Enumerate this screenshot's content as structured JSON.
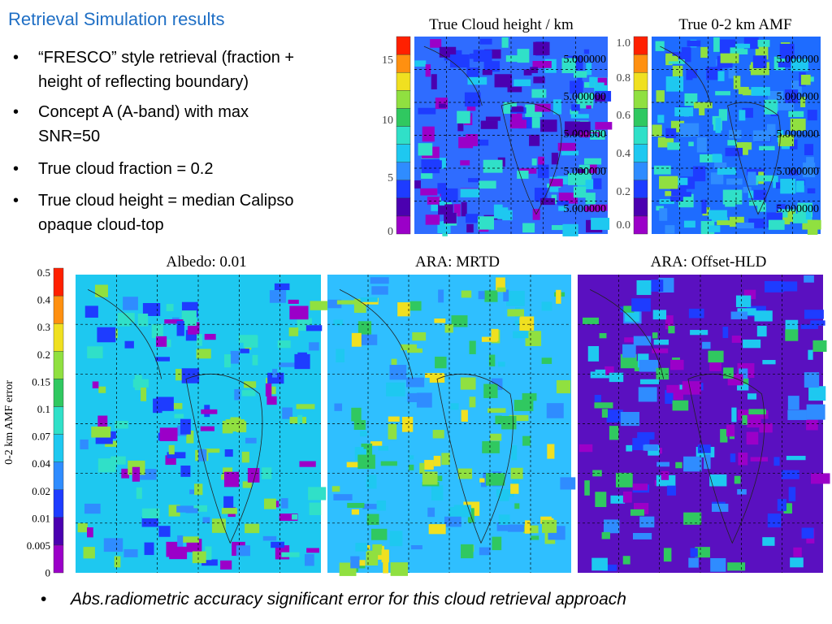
{
  "title": "Retrieval Simulation results",
  "bullets": [
    [
      "“FRESCO” style retrieval (fraction +",
      "height of reflecting boundary)"
    ],
    [
      "Concept A (A-band) with max",
      "SNR=50"
    ],
    [
      "True cloud fraction = 0.2"
    ],
    [
      "True cloud height = median Calipso",
      "opaque cloud-top"
    ]
  ],
  "top_panels": [
    {
      "title": "True Cloud height / km",
      "colorbar_ticks": [
        "15",
        "10",
        "5",
        "0"
      ],
      "annotations": [
        "5.000000",
        "5.000000",
        "5.000000",
        "5.000000",
        "5.000000"
      ]
    },
    {
      "title": "True 0-2 km AMF",
      "colorbar_ticks": [
        "1.0",
        "0.8",
        "0.6",
        "0.4",
        "0.2",
        "0.0"
      ],
      "annotations": [
        "5.000000",
        "5.000000",
        "5.000000",
        "5.000000",
        "5.000000"
      ]
    }
  ],
  "bottom": {
    "colorbar_label": "0-2 km AMF error",
    "colorbar_ticks": [
      "0.5",
      "0.4",
      "0.3",
      "0.2",
      "0.15",
      "0.1",
      "0.07",
      "0.04",
      "0.02",
      "0.01",
      "0.005",
      "0"
    ],
    "panels": [
      "Albedo: 0.01",
      "ARA: MRTD",
      "ARA: Offset-HLD"
    ]
  },
  "footnote": "Abs.radiometric accuracy significant error for this cloud retrieval approach"
}
